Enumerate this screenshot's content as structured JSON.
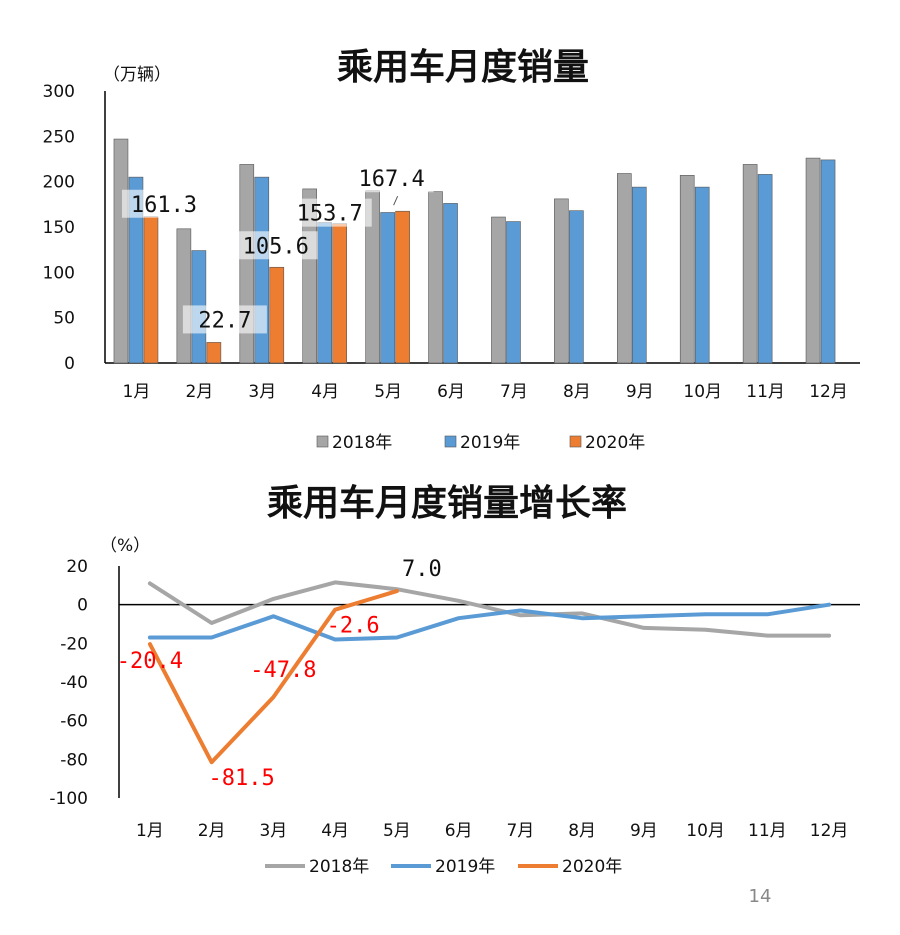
{
  "page_number": "14",
  "colors": {
    "s2018": "#a6a6a6",
    "s2019": "#5b9bd5",
    "s2020": "#ed7d31",
    "red_label": "#ff0000"
  },
  "chart_data": [
    {
      "type": "bar",
      "title": "乘用车月度销量",
      "ylabel": "（万辆）",
      "categories": [
        "1月",
        "2月",
        "3月",
        "4月",
        "5月",
        "6月",
        "7月",
        "8月",
        "9月",
        "10月",
        "11月",
        "12月"
      ],
      "yticks": [
        "0",
        "50",
        "100",
        "150",
        "200",
        "250",
        "300"
      ],
      "ylim": [
        0,
        300
      ],
      "series": [
        {
          "name": "2018年",
          "values": [
            247,
            148,
            219,
            192,
            190,
            189,
            161,
            181,
            209,
            207,
            219,
            226
          ]
        },
        {
          "name": "2019年",
          "values": [
            205,
            124,
            205,
            155,
            166,
            176,
            156,
            168,
            194,
            194,
            208,
            224
          ]
        },
        {
          "name": "2020年",
          "values": [
            161.3,
            22.7,
            105.6,
            153.7,
            167.4,
            null,
            null,
            null,
            null,
            null,
            null,
            null
          ]
        }
      ],
      "data_labels": [
        "161.3",
        "22.7",
        "105.6",
        "153.7",
        "167.4"
      ],
      "legend": "bottom"
    },
    {
      "type": "line",
      "title": "乘用车月度销量增长率",
      "ylabel": "（%）",
      "categories": [
        "1月",
        "2月",
        "3月",
        "4月",
        "5月",
        "6月",
        "7月",
        "8月",
        "9月",
        "10月",
        "11月",
        "12月"
      ],
      "yticks": [
        "20",
        "0",
        "-20",
        "-40",
        "-60",
        "-80",
        "-100"
      ],
      "ylim": [
        -100,
        20
      ],
      "series": [
        {
          "name": "2018年",
          "values": [
            11,
            -9.5,
            3,
            11.5,
            8,
            2,
            -5.5,
            -4.5,
            -12,
            -13,
            -16,
            -16
          ]
        },
        {
          "name": "2019年",
          "values": [
            -17,
            -17,
            -6,
            -18,
            -17,
            -7,
            -3,
            -7,
            -6,
            -5,
            -5,
            0
          ]
        },
        {
          "name": "2020年",
          "values": [
            -20.4,
            -81.5,
            -47.8,
            -2.6,
            7.0,
            null,
            null,
            null,
            null,
            null,
            null,
            null
          ]
        }
      ],
      "data_labels": [
        "-20.4",
        "-81.5",
        "-47.8",
        "-2.6",
        "7.0"
      ],
      "legend": "bottom"
    }
  ]
}
